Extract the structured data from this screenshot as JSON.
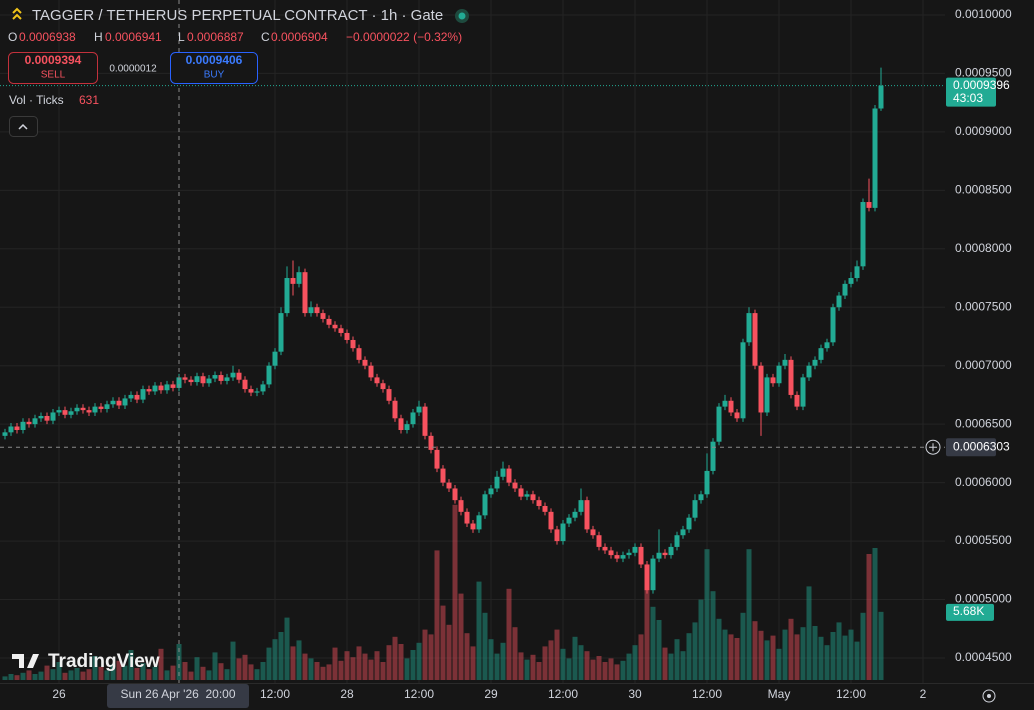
{
  "header": {
    "title": "TAGGER / TETHERUS PERPETUAL CONTRACT · 1h · Gate",
    "o_label": "O",
    "o": "0.0006938",
    "h_label": "H",
    "h": "0.0006941",
    "l_label": "L",
    "l": "0.0006887",
    "c_label": "C",
    "c": "0.0006904",
    "change": "−0.0000022 (−0.32%)",
    "sell_price": "0.0009394",
    "sell": "SELL",
    "spread": "0.0000012",
    "buy_price": "0.0009406",
    "buy": "BUY",
    "vol_label": "Vol · Ticks",
    "vol_ticks": "631",
    "logo": "TradingView"
  },
  "chart_data": {
    "type": "candlestick",
    "up_color": "#22ab94",
    "down_color": "#f7525f",
    "grid": true,
    "ylim": [
      0.0004286,
      0.0010128
    ],
    "yticks": [
      {
        "value": 0.001,
        "label": "0.0010000"
      },
      {
        "value": 0.00095,
        "label": "0.0009500"
      },
      {
        "value": 0.0009,
        "label": "0.0009000"
      },
      {
        "value": 0.00085,
        "label": "0.0008500"
      },
      {
        "value": 0.0008,
        "label": "0.0008000"
      },
      {
        "value": 0.00075,
        "label": "0.0007500"
      },
      {
        "value": 0.0007,
        "label": "0.0007000"
      },
      {
        "value": 0.00065,
        "label": "0.0006500"
      },
      {
        "value": 0.0006,
        "label": "0.0006000"
      },
      {
        "value": 0.00055,
        "label": "0.0005500"
      },
      {
        "value": 0.0005,
        "label": "0.0005000"
      },
      {
        "value": 0.00045,
        "label": "0.0004500"
      }
    ],
    "xticks": [
      {
        "value": 9,
        "label": "26"
      },
      {
        "value": 45,
        "label": "12:00"
      },
      {
        "value": 57,
        "label": "28"
      },
      {
        "value": 69,
        "label": "12:00"
      },
      {
        "value": 81,
        "label": "29"
      },
      {
        "value": 93,
        "label": "12:00"
      },
      {
        "value": 105,
        "label": "30"
      },
      {
        "value": 117,
        "label": "12:00"
      },
      {
        "value": 129,
        "label": "May"
      },
      {
        "value": 141,
        "label": "12:00"
      },
      {
        "value": 153,
        "label": "2"
      }
    ],
    "open": [
      0.00064,
      0.000643,
      0.000648,
      0.000645,
      0.000652,
      0.00065,
      0.000655,
      0.000657,
      0.000653,
      0.00066,
      0.000662,
      0.000658,
      0.000661,
      0.000664,
      0.000662,
      0.00066,
      0.000665,
      0.000663,
      0.000667,
      0.00067,
      0.000666,
      0.000672,
      0.000675,
      0.000671,
      0.00068,
      0.000678,
      0.000683,
      0.000679,
      0.000684,
      0.000681,
      0.00069,
      0.000688,
      0.000686,
      0.000691,
      0.000685,
      0.000689,
      0.000692,
      0.000687,
      0.00069,
      0.000694,
      0.000688,
      0.00068,
      0.000677,
      0.000678,
      0.000684,
      0.0007,
      0.000712,
      0.000745,
      0.000775,
      0.00077,
      0.00078,
      0.000745,
      0.00075,
      0.000745,
      0.00074,
      0.000735,
      0.000732,
      0.000728,
      0.000722,
      0.000715,
      0.000705,
      0.0007,
      0.00069,
      0.000685,
      0.00068,
      0.00067,
      0.000655,
      0.000645,
      0.00065,
      0.00066,
      0.000665,
      0.00064,
      0.000628,
      0.000612,
      0.0006,
      0.000595,
      0.000585,
      0.000575,
      0.000565,
      0.00056,
      0.000572,
      0.00059,
      0.000595,
      0.000605,
      0.000612,
      0.0006,
      0.000595,
      0.000588,
      0.00059,
      0.000585,
      0.00058,
      0.000575,
      0.00056,
      0.00055,
      0.000565,
      0.00057,
      0.000575,
      0.000585,
      0.00056,
      0.000555,
      0.000545,
      0.000542,
      0.000538,
      0.000535,
      0.000538,
      0.00054,
      0.000545,
      0.00053,
      0.000508,
      0.000535,
      0.00054,
      0.000538,
      0.000545,
      0.000555,
      0.00056,
      0.00057,
      0.000585,
      0.00059,
      0.00061,
      0.000635,
      0.000665,
      0.00067,
      0.00066,
      0.000655,
      0.00072,
      0.000745,
      0.0007,
      0.00066,
      0.00069,
      0.000685,
      0.0007,
      0.000705,
      0.000675,
      0.000665,
      0.00069,
      0.0007,
      0.000705,
      0.000715,
      0.00072,
      0.00075,
      0.00076,
      0.00077,
      0.000775,
      0.000785,
      0.00084,
      0.000835,
      0.00092
    ],
    "high": [
      0.000646,
      0.000651,
      0.000651,
      0.000655,
      0.000655,
      0.000658,
      0.00066,
      0.00066,
      0.000663,
      0.000665,
      0.000665,
      0.000664,
      0.000667,
      0.000667,
      0.000665,
      0.000668,
      0.000668,
      0.00067,
      0.000673,
      0.000673,
      0.000675,
      0.000678,
      0.000678,
      0.000683,
      0.000683,
      0.000686,
      0.000686,
      0.000687,
      0.000687,
      0.000693,
      0.000693,
      0.000691,
      0.000694,
      0.000694,
      0.000692,
      0.000695,
      0.000695,
      0.000693,
      0.0007,
      0.000697,
      0.000691,
      0.000683,
      0.000681,
      0.000687,
      0.000703,
      0.000715,
      0.00075,
      0.000785,
      0.00079,
      0.000785,
      0.000783,
      0.000755,
      0.000753,
      0.000748,
      0.000743,
      0.000738,
      0.000735,
      0.000731,
      0.000725,
      0.000718,
      0.000708,
      0.000703,
      0.000693,
      0.000688,
      0.000683,
      0.000673,
      0.000658,
      0.000653,
      0.000663,
      0.00067,
      0.000668,
      0.000643,
      0.000631,
      0.000615,
      0.000603,
      0.000598,
      0.000588,
      0.000578,
      0.000568,
      0.000575,
      0.000593,
      0.000598,
      0.00061,
      0.000618,
      0.000615,
      0.000603,
      0.000598,
      0.000593,
      0.000593,
      0.000588,
      0.000583,
      0.000578,
      0.000563,
      0.000568,
      0.000573,
      0.000578,
      0.000595,
      0.000588,
      0.000563,
      0.000558,
      0.000548,
      0.000545,
      0.000541,
      0.000541,
      0.000543,
      0.000548,
      0.000548,
      0.000533,
      0.000538,
      0.00056,
      0.000543,
      0.000548,
      0.000558,
      0.000563,
      0.000573,
      0.00059,
      0.000593,
      0.000625,
      0.000638,
      0.000668,
      0.000675,
      0.000673,
      0.000663,
      0.000723,
      0.00075,
      0.000748,
      0.000703,
      0.000693,
      0.000693,
      0.000703,
      0.00071,
      0.000708,
      0.000678,
      0.000693,
      0.000703,
      0.000708,
      0.000718,
      0.000723,
      0.000753,
      0.000763,
      0.000773,
      0.00078,
      0.00079,
      0.000843,
      0.00086,
      0.000923,
      0.000955
    ],
    "low": [
      0.000637,
      0.00064,
      0.000642,
      0.000642,
      0.000647,
      0.000647,
      0.000652,
      0.00065,
      0.00065,
      0.000657,
      0.000655,
      0.000655,
      0.000658,
      0.000659,
      0.000657,
      0.000657,
      0.00066,
      0.00066,
      0.000664,
      0.000663,
      0.000663,
      0.000669,
      0.000668,
      0.000668,
      0.000675,
      0.000675,
      0.000676,
      0.000676,
      0.000678,
      0.000678,
      0.000685,
      0.000683,
      0.000683,
      0.000682,
      0.000682,
      0.000686,
      0.000684,
      0.000684,
      0.000687,
      0.000685,
      0.000677,
      0.000674,
      0.000674,
      0.000675,
      0.000681,
      0.000697,
      0.000709,
      0.000742,
      0.00076,
      0.000767,
      0.000742,
      0.000742,
      0.000742,
      0.000737,
      0.000732,
      0.000729,
      0.000725,
      0.000719,
      0.000712,
      0.000702,
      0.000697,
      0.000687,
      0.000682,
      0.000677,
      0.000667,
      0.000652,
      0.000642,
      0.000642,
      0.000647,
      0.000657,
      0.000637,
      0.000625,
      0.000609,
      0.000597,
      0.000592,
      0.000582,
      0.000572,
      0.000562,
      0.000557,
      0.000557,
      0.000569,
      0.000587,
      0.000592,
      0.000602,
      0.000597,
      0.000592,
      0.000585,
      0.000585,
      0.000582,
      0.000577,
      0.000572,
      0.000557,
      0.000547,
      0.000547,
      0.000562,
      0.000567,
      0.000572,
      0.000557,
      0.000552,
      0.000542,
      0.000539,
      0.000535,
      0.000532,
      0.000532,
      0.000535,
      0.000537,
      0.000527,
      0.000505,
      0.000505,
      0.000532,
      0.000535,
      0.000535,
      0.000542,
      0.000552,
      0.000557,
      0.000567,
      0.000582,
      0.000587,
      0.000607,
      0.000632,
      0.000662,
      0.000657,
      0.000652,
      0.000652,
      0.000717,
      0.000697,
      0.00064,
      0.000657,
      0.000682,
      0.000682,
      0.000697,
      0.000672,
      0.000662,
      0.000662,
      0.000687,
      0.000697,
      0.000702,
      0.000712,
      0.000717,
      0.000747,
      0.000757,
      0.000767,
      0.000772,
      0.000782,
      0.000832,
      0.000832,
      0.000918
    ],
    "close": [
      0.000643,
      0.000648,
      0.000645,
      0.000652,
      0.00065,
      0.000655,
      0.000657,
      0.000653,
      0.00066,
      0.000662,
      0.000658,
      0.000661,
      0.000664,
      0.000662,
      0.00066,
      0.000665,
      0.000663,
      0.000667,
      0.00067,
      0.000666,
      0.000672,
      0.000675,
      0.000671,
      0.00068,
      0.000678,
      0.000683,
      0.000679,
      0.000684,
      0.000681,
      0.00069,
      0.000688,
      0.000686,
      0.000691,
      0.000685,
      0.000689,
      0.000692,
      0.000687,
      0.00069,
      0.000694,
      0.000688,
      0.00068,
      0.000677,
      0.000678,
      0.000684,
      0.0007,
      0.000712,
      0.000745,
      0.000775,
      0.00077,
      0.00078,
      0.000745,
      0.00075,
      0.000745,
      0.00074,
      0.000735,
      0.000732,
      0.000728,
      0.000722,
      0.000715,
      0.000705,
      0.0007,
      0.00069,
      0.000685,
      0.00068,
      0.00067,
      0.000655,
      0.000645,
      0.00065,
      0.00066,
      0.000665,
      0.00064,
      0.000628,
      0.000612,
      0.0006,
      0.000595,
      0.000585,
      0.000575,
      0.000565,
      0.00056,
      0.000572,
      0.00059,
      0.000595,
      0.000605,
      0.000612,
      0.0006,
      0.000595,
      0.000588,
      0.00059,
      0.000585,
      0.00058,
      0.000575,
      0.00056,
      0.00055,
      0.000565,
      0.00057,
      0.000575,
      0.000585,
      0.00056,
      0.000555,
      0.000545,
      0.000542,
      0.000538,
      0.000535,
      0.000538,
      0.00054,
      0.000545,
      0.00053,
      0.000508,
      0.000535,
      0.00054,
      0.000538,
      0.000545,
      0.000555,
      0.00056,
      0.00057,
      0.000585,
      0.00059,
      0.00061,
      0.000635,
      0.000665,
      0.00067,
      0.00066,
      0.000655,
      0.00072,
      0.000745,
      0.0007,
      0.00066,
      0.00069,
      0.000685,
      0.0007,
      0.000705,
      0.000675,
      0.000665,
      0.00069,
      0.0007,
      0.000705,
      0.000715,
      0.00072,
      0.00075,
      0.00076,
      0.00077,
      0.000775,
      0.000785,
      0.00084,
      0.000835,
      0.00092,
      0.0009396
    ],
    "volume_ylim": [
      0,
      15000
    ],
    "volume": [
      300,
      500,
      400,
      600,
      800,
      500,
      700,
      1200,
      900,
      1500,
      600,
      800,
      1000,
      700,
      900,
      2000,
      1100,
      800,
      1300,
      1600,
      1200,
      2500,
      1000,
      1400,
      900,
      1100,
      2600,
      800,
      1200,
      3000,
      1500,
      700,
      1900,
      1100,
      800,
      2300,
      1400,
      900,
      3200,
      1800,
      2100,
      1300,
      900,
      1500,
      2700,
      3400,
      4000,
      5200,
      2800,
      3300,
      2200,
      1800,
      1500,
      1100,
      1300,
      2700,
      1600,
      2400,
      1900,
      2800,
      2200,
      1700,
      2400,
      1500,
      2900,
      3600,
      3000,
      1800,
      2500,
      3100,
      4200,
      3800,
      10800,
      6200,
      4600,
      14600,
      7200,
      3900,
      2800,
      8200,
      5600,
      3400,
      2200,
      3100,
      7600,
      4400,
      2300,
      1700,
      2100,
      1500,
      2800,
      3300,
      4200,
      2600,
      1800,
      3600,
      2900,
      2400,
      1700,
      2000,
      1500,
      1800,
      1300,
      1600,
      2200,
      2900,
      3800,
      9200,
      6100,
      5000,
      2700,
      2200,
      3400,
      2400,
      3900,
      4800,
      6700,
      10900,
      7400,
      5100,
      4200,
      3800,
      3500,
      5600,
      10900,
      4900,
      4100,
      3300,
      3700,
      2600,
      4200,
      5100,
      3800,
      4400,
      7800,
      4500,
      3600,
      2900,
      4000,
      4800,
      3700,
      4200,
      3200,
      5600,
      10500,
      11000,
      5680
    ],
    "last_volume_label": "5.68K",
    "countdown": "43:03",
    "crosshair": {
      "price": 0.0006303,
      "time": "Sun 26 Apr '26  20:00"
    }
  }
}
